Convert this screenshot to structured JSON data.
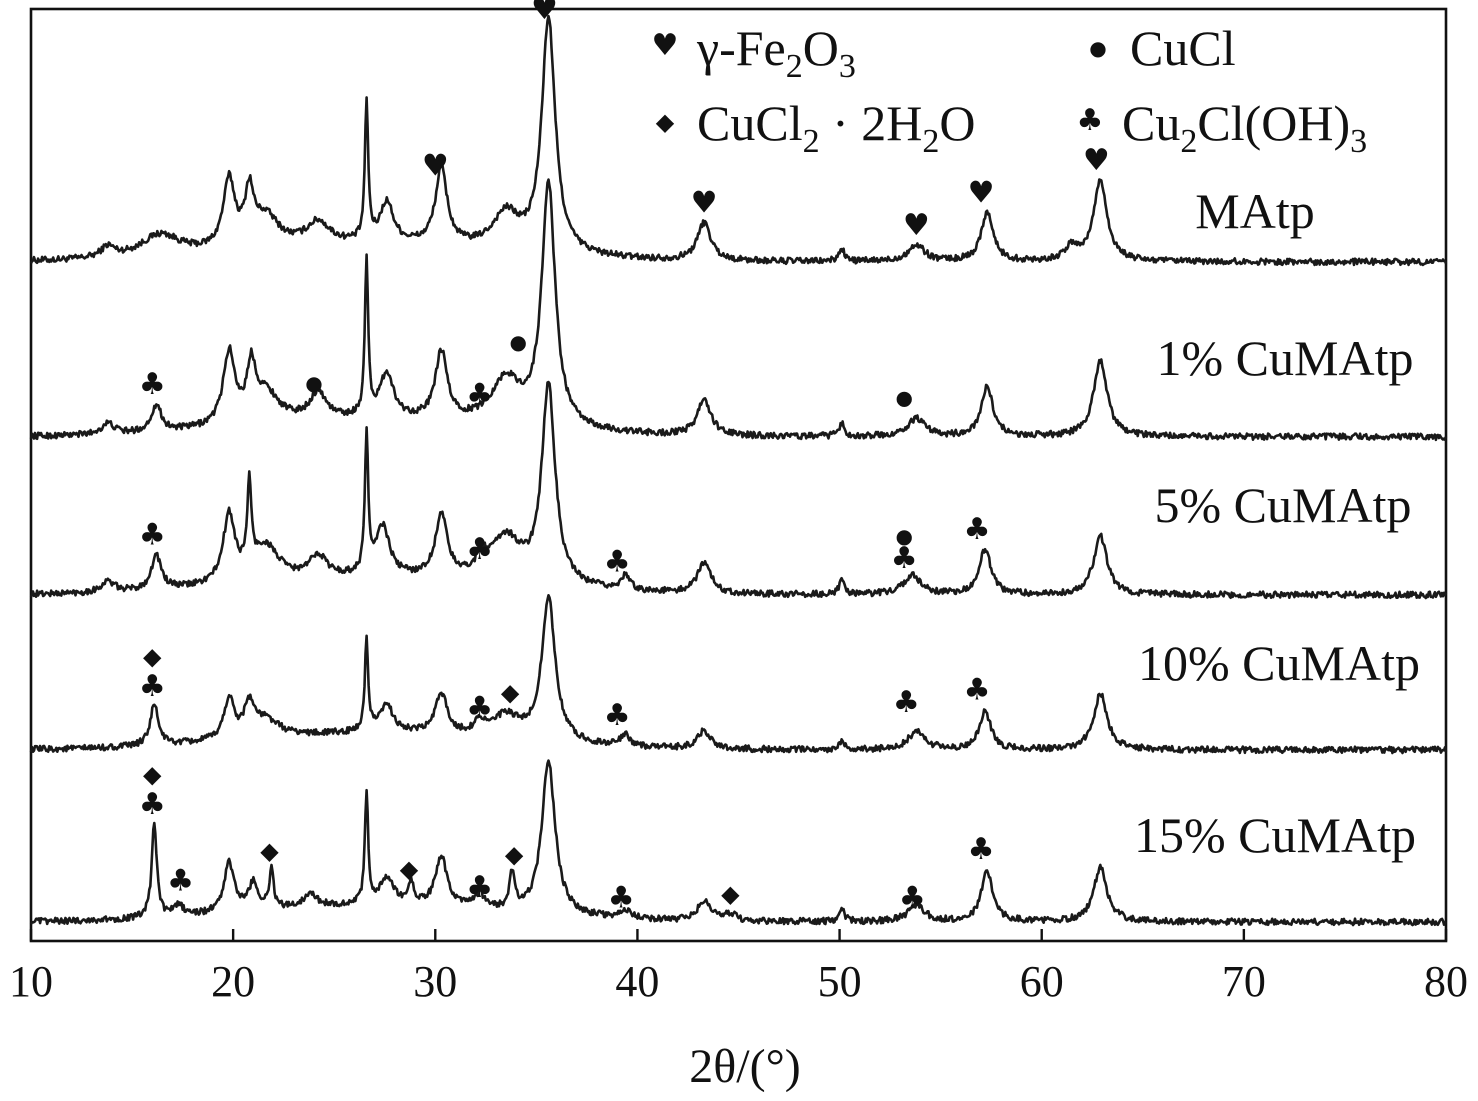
{
  "chart_data": {
    "type": "line",
    "xlabel": "2θ/(°)",
    "xlim": [
      10,
      80
    ],
    "x_ticks": [
      "10",
      "20",
      "30",
      "40",
      "50",
      "60",
      "70",
      "80"
    ],
    "y_axis": "none (stacked offset patterns)",
    "legend": {
      "placement": "top-right",
      "entries": [
        {
          "symbol": "heart",
          "label": "γ-Fe2O3",
          "text_main": "γ-Fe",
          "sub1": "2",
          "mid": "O",
          "sub2": "3",
          "tail": ""
        },
        {
          "symbol": "circle",
          "label": "CuCl",
          "text_main": "CuCl",
          "sub1": "",
          "mid": "",
          "sub2": "",
          "tail": ""
        },
        {
          "symbol": "diamond",
          "label": "CuCl2·2H2O",
          "text_main": "CuCl",
          "sub1": "2",
          "mid": " · 2H",
          "sub2": "2",
          "tail": "O"
        },
        {
          "symbol": "club",
          "label": "Cu2Cl(OH)3",
          "text_main": "Cu",
          "sub1": "2",
          "mid": "Cl(OH)",
          "sub2": "3",
          "tail": ""
        }
      ]
    },
    "series": [
      {
        "name": "MAtp",
        "baseline": 0.0,
        "noise": 0.07,
        "peaks": [
          [
            13.8,
            0.12,
            0.4
          ],
          [
            16.4,
            0.25,
            1.2
          ],
          [
            19.8,
            0.75,
            0.35
          ],
          [
            20.8,
            0.55,
            0.25
          ],
          [
            21.6,
            0.35,
            0.8
          ],
          [
            24.2,
            0.25,
            0.7
          ],
          [
            26.6,
            1.5,
            0.1
          ],
          [
            27.6,
            0.45,
            0.4
          ],
          [
            30.3,
            0.85,
            0.35
          ],
          [
            33.5,
            0.4,
            0.8
          ],
          [
            35.6,
            2.6,
            0.4
          ],
          [
            43.3,
            0.42,
            0.4
          ],
          [
            50.1,
            0.15,
            0.15
          ],
          [
            53.8,
            0.18,
            0.5
          ],
          [
            57.3,
            0.55,
            0.35
          ],
          [
            62.9,
            0.9,
            0.4
          ],
          [
            61.5,
            0.15,
            0.4
          ]
        ],
        "markers": [
          {
            "x": 30.0,
            "y": 0.96,
            "symbol": "heart"
          },
          {
            "x": 35.4,
            "y": 2.7,
            "symbol": "heart"
          },
          {
            "x": 43.3,
            "y": 0.55,
            "symbol": "heart"
          },
          {
            "x": 53.8,
            "y": 0.3,
            "symbol": "heart"
          },
          {
            "x": 57.0,
            "y": 0.66,
            "symbol": "heart"
          },
          {
            "x": 62.7,
            "y": 1.02,
            "symbol": "heart"
          }
        ]
      },
      {
        "name": "1% CuMAtp",
        "baseline": 0.0,
        "noise": 0.07,
        "peaks": [
          [
            13.8,
            0.12,
            0.4
          ],
          [
            16.2,
            0.3,
            0.3
          ],
          [
            19.8,
            0.8,
            0.35
          ],
          [
            20.9,
            0.55,
            0.25
          ],
          [
            21.6,
            0.35,
            0.8
          ],
          [
            24.2,
            0.3,
            0.5
          ],
          [
            26.6,
            1.7,
            0.1
          ],
          [
            27.6,
            0.5,
            0.4
          ],
          [
            30.3,
            0.75,
            0.35
          ],
          [
            33.5,
            0.5,
            0.9
          ],
          [
            35.6,
            2.7,
            0.4
          ],
          [
            43.3,
            0.4,
            0.4
          ],
          [
            50.1,
            0.15,
            0.15
          ],
          [
            53.8,
            0.2,
            0.5
          ],
          [
            57.3,
            0.55,
            0.35
          ],
          [
            62.9,
            0.85,
            0.4
          ]
        ],
        "markers": [
          {
            "x": 16.0,
            "y": 0.48,
            "symbol": "club"
          },
          {
            "x": 24.0,
            "y": 0.52,
            "symbol": "circle"
          },
          {
            "x": 32.2,
            "y": 0.36,
            "symbol": "club"
          },
          {
            "x": 34.1,
            "y": 0.98,
            "symbol": "circle"
          },
          {
            "x": 53.2,
            "y": 0.36,
            "symbol": "circle"
          }
        ]
      },
      {
        "name": "5% CuMAtp",
        "baseline": 0.0,
        "noise": 0.07,
        "peaks": [
          [
            13.8,
            0.12,
            0.4
          ],
          [
            16.2,
            0.38,
            0.3
          ],
          [
            19.8,
            0.75,
            0.35
          ],
          [
            20.8,
            0.95,
            0.12
          ],
          [
            21.6,
            0.4,
            0.8
          ],
          [
            24.2,
            0.25,
            0.5
          ],
          [
            26.6,
            1.5,
            0.1
          ],
          [
            27.4,
            0.55,
            0.4
          ],
          [
            30.3,
            0.7,
            0.35
          ],
          [
            32.3,
            0.2,
            0.3
          ],
          [
            33.5,
            0.5,
            0.9
          ],
          [
            35.6,
            2.2,
            0.4
          ],
          [
            39.4,
            0.15,
            0.3
          ],
          [
            43.3,
            0.35,
            0.4
          ],
          [
            50.1,
            0.15,
            0.15
          ],
          [
            53.6,
            0.22,
            0.5
          ],
          [
            57.2,
            0.5,
            0.35
          ],
          [
            62.9,
            0.65,
            0.4
          ]
        ],
        "markers": [
          {
            "x": 16.0,
            "y": 0.56,
            "symbol": "club"
          },
          {
            "x": 32.2,
            "y": 0.4,
            "symbol": "club"
          },
          {
            "x": 39.0,
            "y": 0.26,
            "symbol": "club"
          },
          {
            "x": 53.2,
            "y": 0.58,
            "symbol": "circle"
          },
          {
            "x": 53.2,
            "y": 0.3,
            "symbol": "club"
          },
          {
            "x": 56.8,
            "y": 0.62,
            "symbol": "club"
          }
        ]
      },
      {
        "name": "10% CuMAtp",
        "baseline": 0.0,
        "noise": 0.07,
        "peaks": [
          [
            16.1,
            0.45,
            0.25
          ],
          [
            19.8,
            0.45,
            0.3
          ],
          [
            20.8,
            0.35,
            0.3
          ],
          [
            21.6,
            0.2,
            0.8
          ],
          [
            26.6,
            1.0,
            0.1
          ],
          [
            27.6,
            0.3,
            0.4
          ],
          [
            30.3,
            0.45,
            0.35
          ],
          [
            32.2,
            0.15,
            0.3
          ],
          [
            33.5,
            0.25,
            0.8
          ],
          [
            35.6,
            1.6,
            0.4
          ],
          [
            39.4,
            0.12,
            0.3
          ],
          [
            43.3,
            0.2,
            0.4
          ],
          [
            50.1,
            0.1,
            0.15
          ],
          [
            53.8,
            0.2,
            0.5
          ],
          [
            57.2,
            0.42,
            0.35
          ],
          [
            62.9,
            0.62,
            0.4
          ]
        ],
        "markers": [
          {
            "x": 16.0,
            "y": 0.95,
            "symbol": "diamond"
          },
          {
            "x": 16.0,
            "y": 0.6,
            "symbol": "club"
          },
          {
            "x": 32.2,
            "y": 0.36,
            "symbol": "club"
          },
          {
            "x": 33.7,
            "y": 0.55,
            "symbol": "diamond"
          },
          {
            "x": 39.0,
            "y": 0.28,
            "symbol": "club"
          },
          {
            "x": 53.3,
            "y": 0.42,
            "symbol": "club"
          },
          {
            "x": 56.8,
            "y": 0.56,
            "symbol": "club"
          }
        ]
      },
      {
        "name": "15% CuMAtp",
        "baseline": 0.0,
        "noise": 0.07,
        "peaks": [
          [
            16.1,
            1.05,
            0.15
          ],
          [
            17.3,
            0.12,
            0.3
          ],
          [
            19.8,
            0.55,
            0.3
          ],
          [
            21.0,
            0.3,
            0.3
          ],
          [
            21.9,
            0.45,
            0.12
          ],
          [
            23.8,
            0.15,
            0.4
          ],
          [
            26.6,
            1.2,
            0.1
          ],
          [
            27.6,
            0.3,
            0.4
          ],
          [
            28.8,
            0.25,
            0.15
          ],
          [
            30.3,
            0.55,
            0.35
          ],
          [
            32.2,
            0.15,
            0.3
          ],
          [
            33.8,
            0.4,
            0.15
          ],
          [
            35.6,
            1.7,
            0.4
          ],
          [
            39.4,
            0.1,
            0.3
          ],
          [
            43.3,
            0.22,
            0.4
          ],
          [
            44.6,
            0.08,
            0.3
          ],
          [
            50.1,
            0.15,
            0.15
          ],
          [
            53.8,
            0.18,
            0.5
          ],
          [
            57.3,
            0.55,
            0.35
          ],
          [
            62.9,
            0.6,
            0.4
          ]
        ],
        "markers": [
          {
            "x": 16.0,
            "y": 1.55,
            "symbol": "diamond"
          },
          {
            "x": 16.0,
            "y": 1.2,
            "symbol": "club"
          },
          {
            "x": 17.4,
            "y": 0.35,
            "symbol": "club"
          },
          {
            "x": 21.8,
            "y": 0.7,
            "symbol": "diamond"
          },
          {
            "x": 28.7,
            "y": 0.5,
            "symbol": "diamond"
          },
          {
            "x": 32.2,
            "y": 0.28,
            "symbol": "club"
          },
          {
            "x": 33.9,
            "y": 0.66,
            "symbol": "diamond"
          },
          {
            "x": 39.2,
            "y": 0.16,
            "symbol": "club"
          },
          {
            "x": 44.6,
            "y": 0.22,
            "symbol": "diamond"
          },
          {
            "x": 53.6,
            "y": 0.16,
            "symbol": "club"
          },
          {
            "x": 57.0,
            "y": 0.7,
            "symbol": "club"
          }
        ]
      }
    ]
  }
}
